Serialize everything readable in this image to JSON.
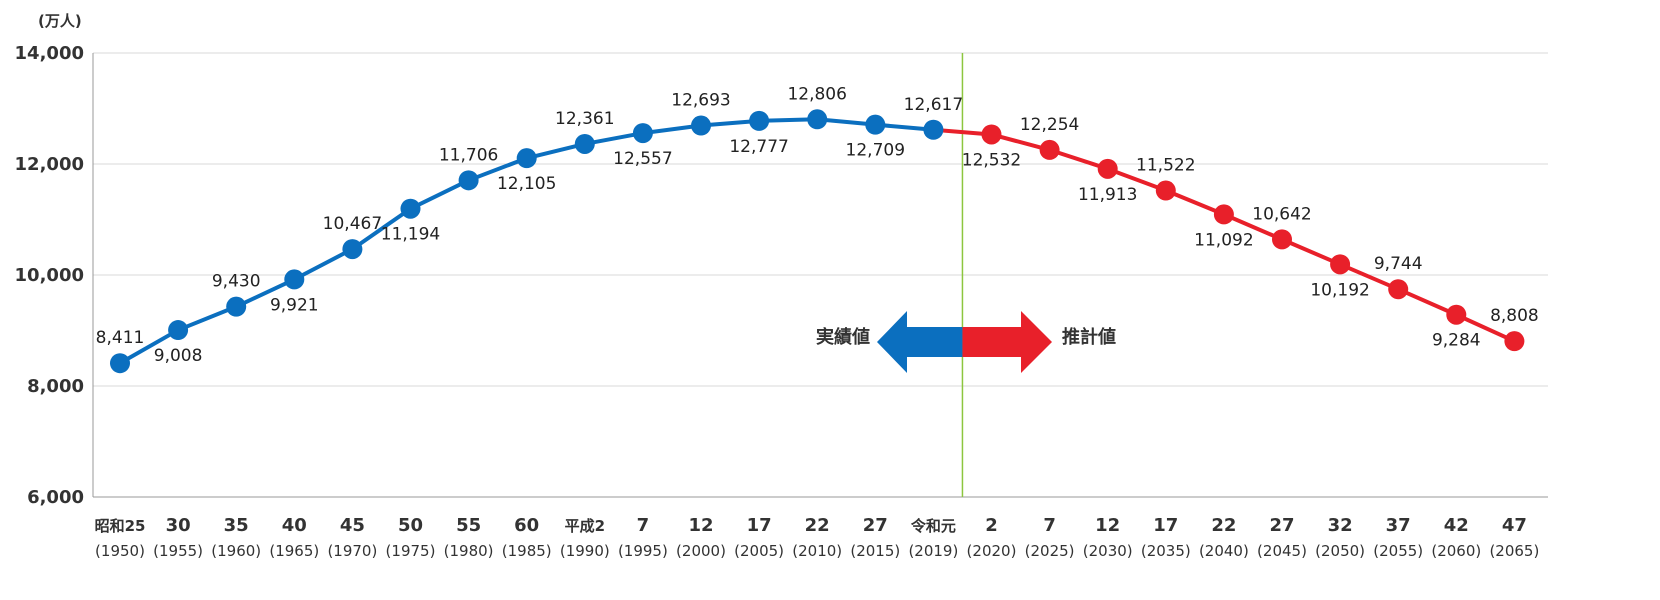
{
  "chart_data": {
    "type": "line",
    "unit": "(万人)",
    "y_ticks": [
      "14,000",
      "12,000",
      "10,000",
      "8,000",
      "6,000"
    ],
    "y_tick_values": [
      14000,
      12000,
      10000,
      8000,
      6000
    ],
    "ylim": [
      6000,
      14000
    ],
    "grid": true,
    "categories_era": [
      "昭和25",
      "30",
      "35",
      "40",
      "45",
      "50",
      "55",
      "60",
      "平成2",
      "7",
      "12",
      "17",
      "22",
      "27",
      "令和元",
      "2",
      "7",
      "12",
      "17",
      "22",
      "27",
      "32",
      "37",
      "42",
      "47"
    ],
    "categories_year": [
      "(1950)",
      "(1955)",
      "(1960)",
      "(1965)",
      "(1970)",
      "(1975)",
      "(1980)",
      "(1985)",
      "(1990)",
      "(1995)",
      "(2000)",
      "(2005)",
      "(2010)",
      "(2015)",
      "(2019)",
      "(2020)",
      "(2025)",
      "(2030)",
      "(2035)",
      "(2040)",
      "(2045)",
      "(2050)",
      "(2055)",
      "(2060)",
      "(2065)"
    ],
    "series": [
      {
        "name": "実績値",
        "color": "#0b6fbf",
        "start_index": 0,
        "values": [
          8411,
          9008,
          9430,
          9921,
          10467,
          11194,
          11706,
          12105,
          12361,
          12557,
          12693,
          12777,
          12806,
          12709,
          12617
        ],
        "labels": [
          "8,411",
          "9,008",
          "9,430",
          "9,921",
          "10,467",
          "11,194",
          "11,706",
          "12,105",
          "12,361",
          "12,557",
          "12,693",
          "12,777",
          "12,806",
          "12,709",
          "12,617"
        ]
      },
      {
        "name": "推計値",
        "color": "#e8202a",
        "start_index": 15,
        "values": [
          12532,
          12254,
          11913,
          11522,
          11092,
          10642,
          10192,
          9744,
          9284,
          8808
        ],
        "labels": [
          "12,532",
          "12,254",
          "11,913",
          "11,522",
          "11,092",
          "10,642",
          "10,192",
          "9,744",
          "9,284",
          "8,808"
        ]
      }
    ],
    "divider_color": "#8dc63f",
    "arrow_left_label": "実績値",
    "arrow_right_label": "推計値"
  }
}
